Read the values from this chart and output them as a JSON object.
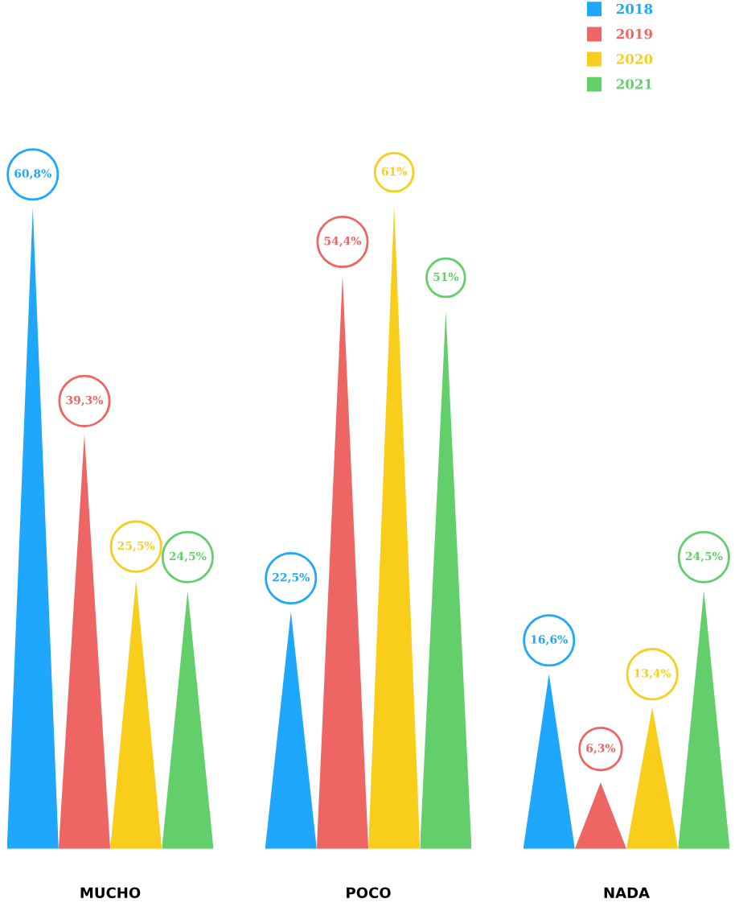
{
  "chart_data": {
    "type": "bar",
    "categories": [
      "MUCHO",
      "POCO",
      "NADA"
    ],
    "legend": "top right",
    "series": [
      {
        "name": "2018",
        "color": "#1ea7fd",
        "values": [
          60.8,
          22.5,
          16.6
        ],
        "value_labels": [
          "60,8%",
          "22,5%",
          "16,6%"
        ]
      },
      {
        "name": "2019",
        "color": "#ee6663",
        "values": [
          39.3,
          54.4,
          6.3
        ],
        "value_labels": [
          "39,3%",
          "54,4%",
          "6,3%"
        ]
      },
      {
        "name": "2020",
        "color": "#f9ce1a",
        "values": [
          25.5,
          61,
          13.4
        ],
        "value_labels": [
          "25,5%",
          "61%",
          "13,4%"
        ]
      },
      {
        "name": "2021",
        "color": "#63cf6b",
        "values": [
          24.5,
          51,
          24.5
        ],
        "value_labels": [
          "24,5%",
          "51%",
          "24,5%"
        ]
      }
    ]
  }
}
